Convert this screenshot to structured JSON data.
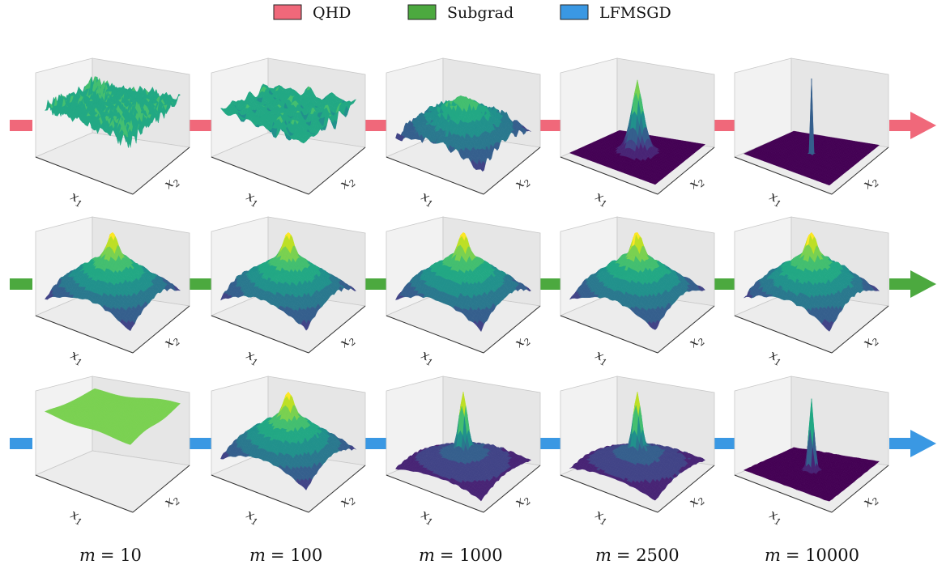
{
  "legend": [
    {
      "label": "QHD",
      "color": "#f0687a"
    },
    {
      "label": "Subgrad",
      "color": "#4ca93f"
    },
    {
      "label": "LFMSGD",
      "color": "#3a98e3"
    }
  ],
  "rows": [
    {
      "method": "QHD",
      "color": "#f0687a",
      "panels": [
        {
          "surface": "rough-high-noise"
        },
        {
          "surface": "rough-wavy"
        },
        {
          "surface": "rough-dome"
        },
        {
          "surface": "single-peak-flat"
        },
        {
          "surface": "spike-flat"
        }
      ]
    },
    {
      "method": "Subgrad",
      "color": "#4ca93f",
      "panels": [
        {
          "surface": "bumpy-dome"
        },
        {
          "surface": "bumpy-dome"
        },
        {
          "surface": "bumpy-dome"
        },
        {
          "surface": "bumpy-dome"
        },
        {
          "surface": "bumpy-dome"
        }
      ]
    },
    {
      "method": "LFMSGD",
      "color": "#3a98e3",
      "panels": [
        {
          "surface": "smooth-plateau"
        },
        {
          "surface": "bumpy-dome"
        },
        {
          "surface": "central-peak"
        },
        {
          "surface": "central-peak"
        },
        {
          "surface": "sharp-peak-flat"
        }
      ]
    }
  ],
  "columns": [
    {
      "label_m": "m",
      "label_eq": "= 10"
    },
    {
      "label_m": "m",
      "label_eq": "= 100"
    },
    {
      "label_m": "m",
      "label_eq": "= 1000"
    },
    {
      "label_m": "m",
      "label_eq": "= 2500"
    },
    {
      "label_m": "m",
      "label_eq": "= 10000"
    }
  ],
  "axes": {
    "x1": "x",
    "x1_sub": "1",
    "x2": "x",
    "x2_sub": "2"
  }
}
